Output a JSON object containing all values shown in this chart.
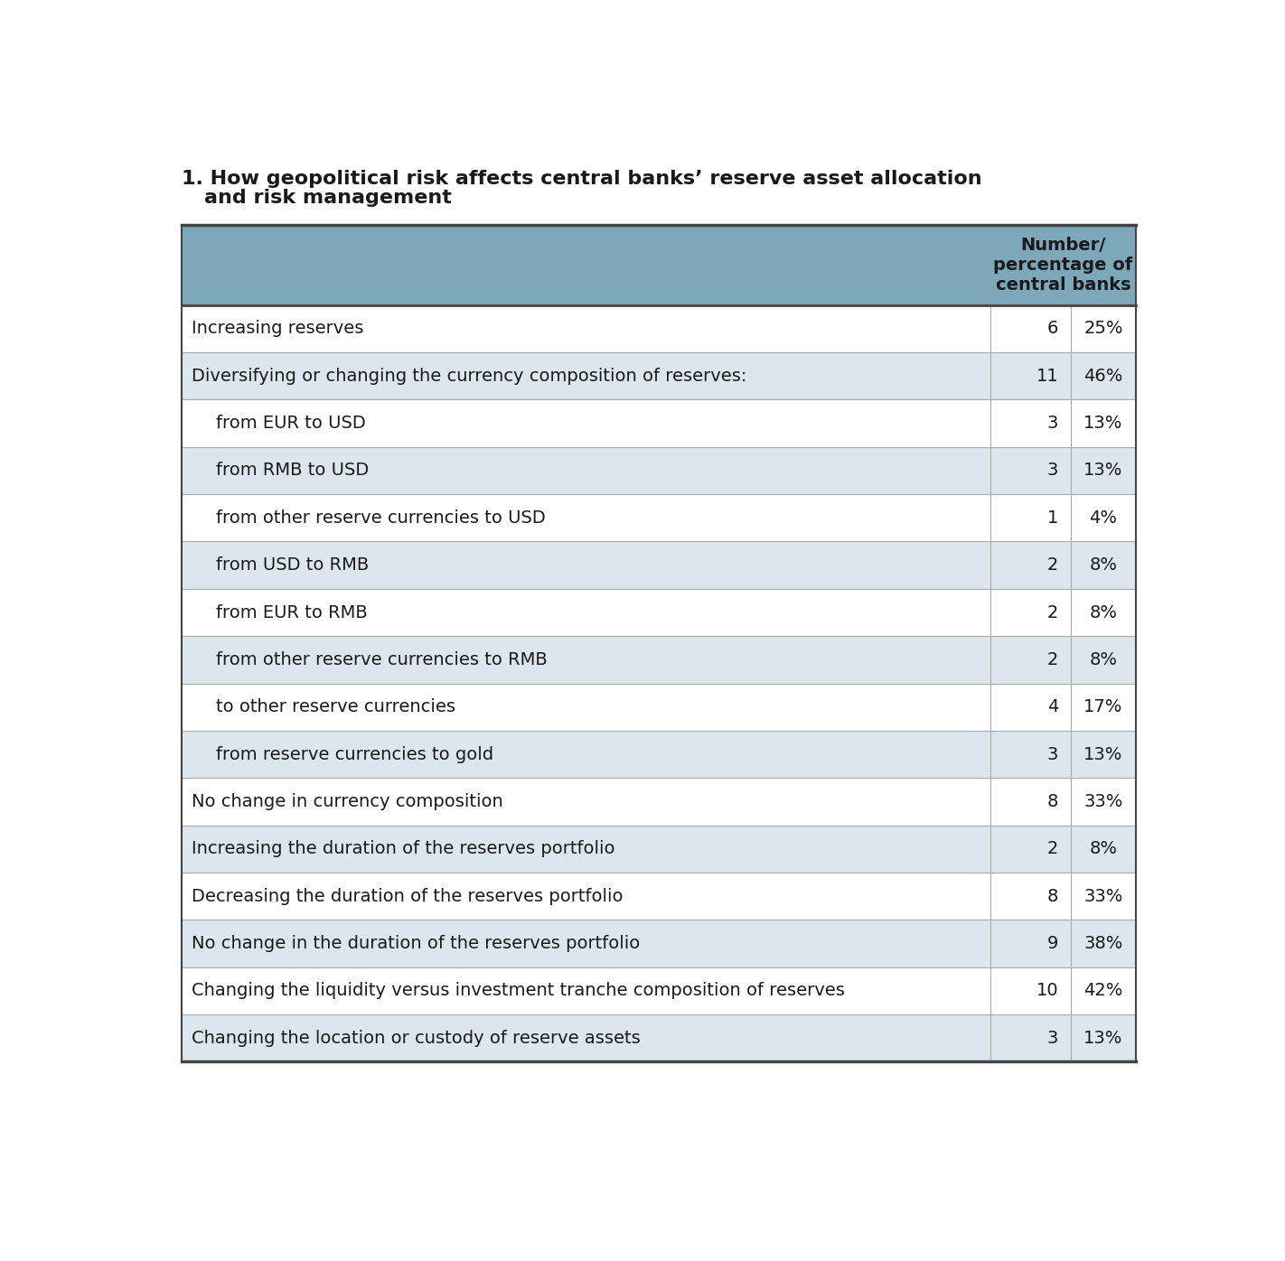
{
  "title_line1": "1. How geopolitical risk affects central banks’ reserve asset allocation",
  "title_line2": "   and risk management",
  "header_col": "Number/\npercentage of\ncentral banks",
  "rows": [
    {
      "label": "Increasing reserves",
      "indent": 0,
      "number": "6",
      "pct": "25%",
      "shaded": false
    },
    {
      "label": "Diversifying or changing the currency composition of reserves:",
      "indent": 0,
      "number": "11",
      "pct": "46%",
      "shaded": true
    },
    {
      "label": "from EUR to USD",
      "indent": 1,
      "number": "3",
      "pct": "13%",
      "shaded": false
    },
    {
      "label": "from RMB to USD",
      "indent": 1,
      "number": "3",
      "pct": "13%",
      "shaded": true
    },
    {
      "label": "from other reserve currencies to USD",
      "indent": 1,
      "number": "1",
      "pct": "4%",
      "shaded": false
    },
    {
      "label": "from USD to RMB",
      "indent": 1,
      "number": "2",
      "pct": "8%",
      "shaded": true
    },
    {
      "label": "from EUR to RMB",
      "indent": 1,
      "number": "2",
      "pct": "8%",
      "shaded": false
    },
    {
      "label": "from other reserve currencies to RMB",
      "indent": 1,
      "number": "2",
      "pct": "8%",
      "shaded": true
    },
    {
      "label": "to other reserve currencies",
      "indent": 1,
      "number": "4",
      "pct": "17%",
      "shaded": false
    },
    {
      "label": "from reserve currencies to gold",
      "indent": 1,
      "number": "3",
      "pct": "13%",
      "shaded": true
    },
    {
      "label": "No change in currency composition",
      "indent": 0,
      "number": "8",
      "pct": "33%",
      "shaded": false
    },
    {
      "label": "Increasing the duration of the reserves portfolio",
      "indent": 0,
      "number": "2",
      "pct": "8%",
      "shaded": true
    },
    {
      "label": "Decreasing the duration of the reserves portfolio",
      "indent": 0,
      "number": "8",
      "pct": "33%",
      "shaded": false
    },
    {
      "label": "No change in the duration of the reserves portfolio",
      "indent": 0,
      "number": "9",
      "pct": "38%",
      "shaded": true
    },
    {
      "label": "Changing the liquidity versus investment tranche composition of reserves",
      "indent": 0,
      "number": "10",
      "pct": "42%",
      "shaded": false
    },
    {
      "label": "Changing the location or custody of reserve assets",
      "indent": 0,
      "number": "3",
      "pct": "13%",
      "shaded": true
    }
  ],
  "header_bg": "#7da8ba",
  "row_bg_shaded": "#dce6ed",
  "row_bg_white": "#ffffff",
  "text_color": "#1a1a1a",
  "title_color": "#1a1a1a",
  "border_color_dark": "#444444",
  "border_color_light": "#aaaaaa",
  "font_size_title": 16,
  "font_size_header": 14,
  "font_size_row": 14,
  "indent_size": 35
}
